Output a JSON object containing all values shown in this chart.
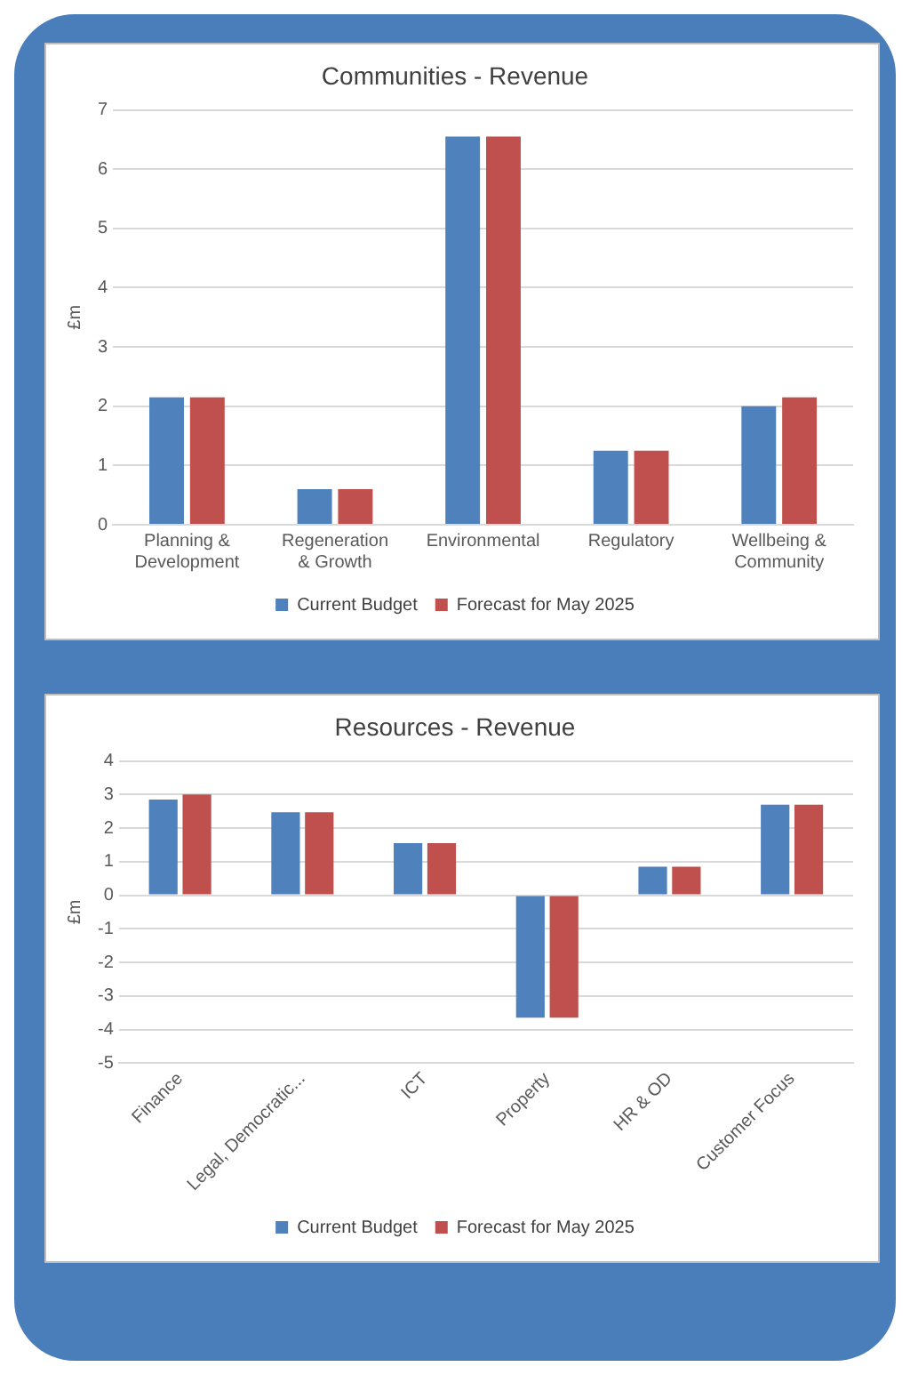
{
  "chart_data": [
    {
      "type": "bar",
      "title": "Communities - Revenue",
      "ylabel": "£m",
      "categories": [
        "Planning & Development",
        "Regeneration & Growth",
        "Environmental",
        "Regulatory",
        "Wellbeing & Community"
      ],
      "series": [
        {
          "name": "Current Budget",
          "color": "#4f81bd",
          "values": [
            2.15,
            0.6,
            6.55,
            1.25,
            2.0
          ]
        },
        {
          "name": "Forecast for May 2025",
          "color": "#c0504d",
          "values": [
            2.15,
            0.6,
            6.55,
            1.25,
            2.15
          ]
        }
      ],
      "ylim": [
        0,
        7
      ],
      "yticks": [
        0,
        1,
        2,
        3,
        4,
        5,
        6,
        7
      ],
      "grid": "y",
      "legend": "bottom"
    },
    {
      "type": "bar",
      "title": "Resources - Revenue",
      "ylabel": "£m",
      "categories": [
        "Finance",
        "Legal, Democratic...",
        "ICT",
        "Property",
        "HR & OD",
        "Customer Focus"
      ],
      "series": [
        {
          "name": "Current Budget",
          "color": "#4f81bd",
          "values": [
            2.85,
            2.47,
            1.55,
            -3.65,
            0.85,
            2.7
          ]
        },
        {
          "name": "Forecast for May 2025",
          "color": "#c0504d",
          "values": [
            3.0,
            2.47,
            1.55,
            -3.65,
            0.85,
            2.7
          ]
        }
      ],
      "ylim": [
        -5,
        4
      ],
      "yticks": [
        -5,
        -4,
        -3,
        -2,
        -1,
        0,
        1,
        2,
        3,
        4
      ],
      "grid": "y",
      "legend": "bottom"
    }
  ]
}
